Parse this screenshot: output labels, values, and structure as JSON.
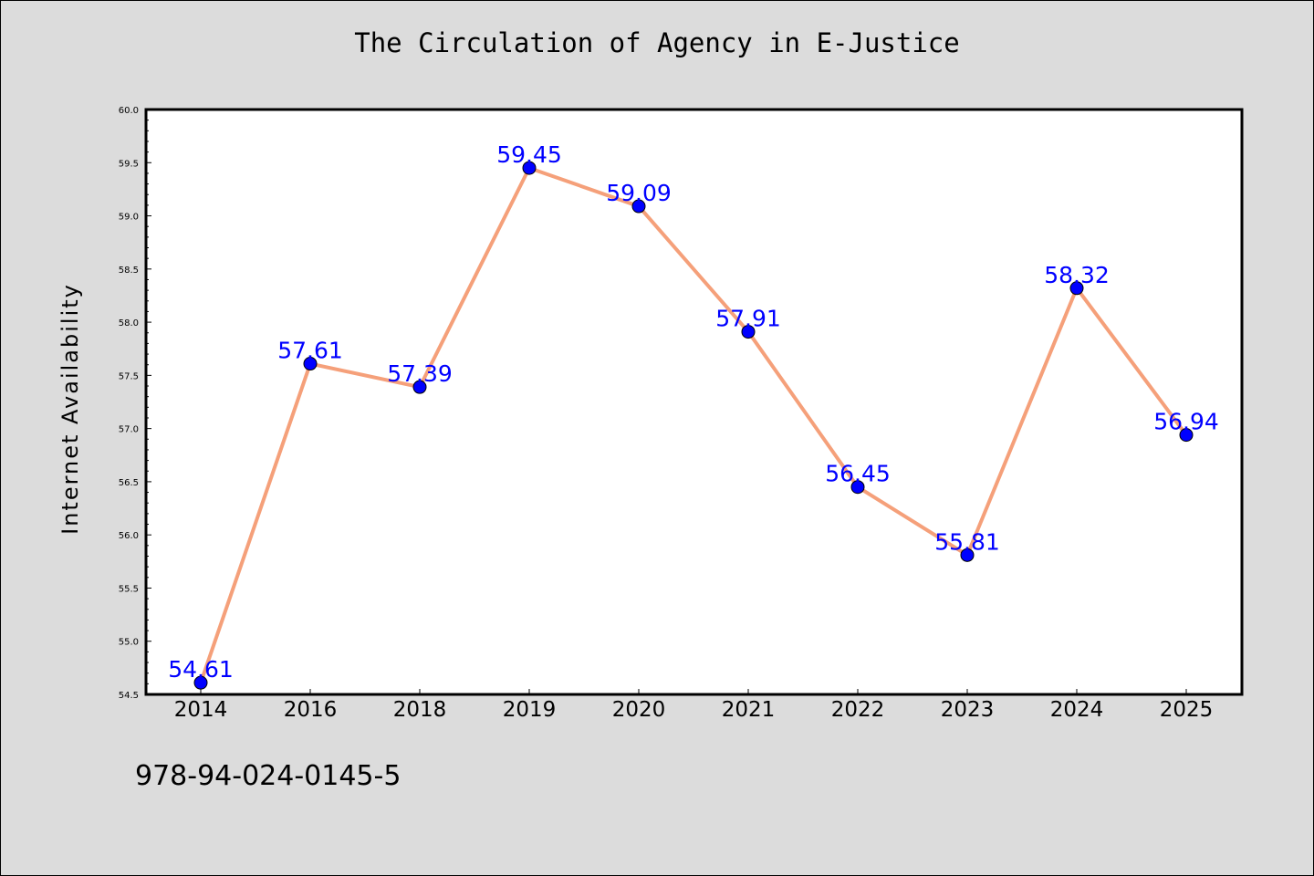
{
  "chart_data": {
    "type": "line",
    "title": "The Circulation of Agency in E-Justice",
    "xlabel": "",
    "ylabel": "Internet Availability",
    "categories": [
      "2014",
      "2016",
      "2018",
      "2019",
      "2020",
      "2021",
      "2022",
      "2023",
      "2024",
      "2025"
    ],
    "values": [
      54.61,
      57.61,
      57.39,
      59.45,
      59.09,
      57.91,
      56.45,
      55.81,
      58.32,
      56.94
    ],
    "data_labels": [
      "54.61",
      "57.61",
      "57.39",
      "59.45",
      "59.09",
      "57.91",
      "56.45",
      "55.81",
      "58.32",
      "56.94"
    ],
    "ylim": [
      54.5,
      60.0
    ],
    "yticks": [
      "54.5",
      "55.0",
      "55.5",
      "56.0",
      "56.5",
      "57.0",
      "57.5",
      "58.0",
      "58.5",
      "59.0",
      "59.5",
      "60.0"
    ],
    "grid": false,
    "legend": "none",
    "colors": {
      "line": "#f5a07a",
      "marker": "#0000ff",
      "data_label": "#0000ff",
      "background": "#dcdcdc",
      "plot_background": "#ffffff"
    }
  },
  "footnote": "978-94-024-0145-5"
}
